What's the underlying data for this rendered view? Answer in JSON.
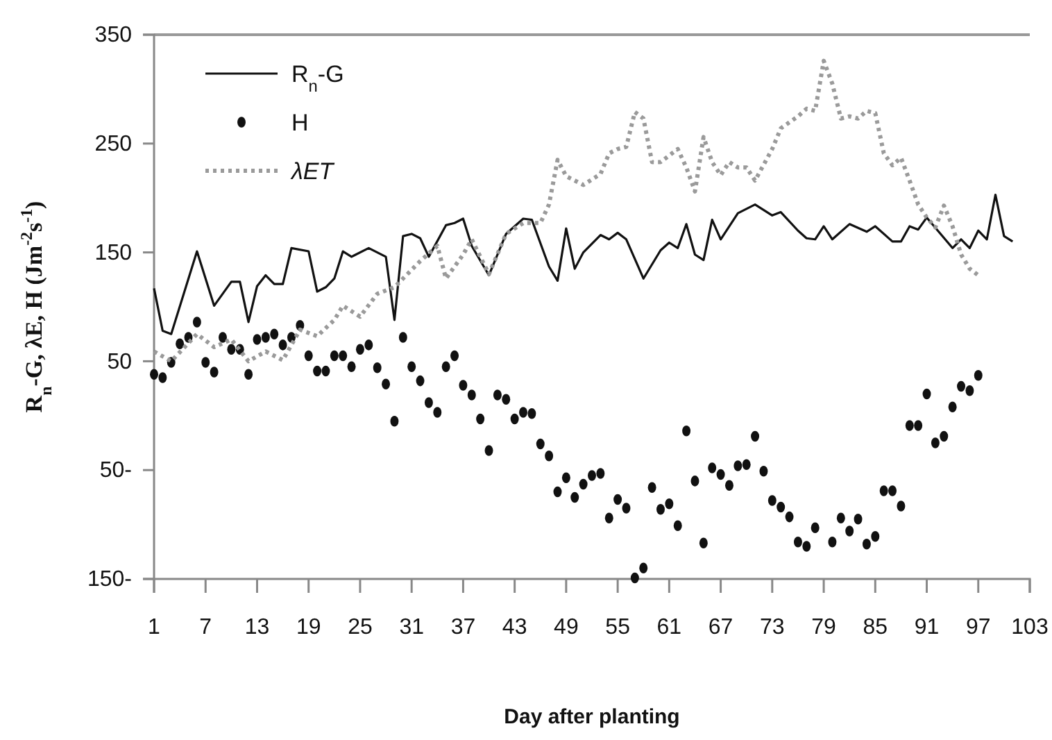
{
  "chart_data": {
    "type": "line",
    "xlabel": "Day after planting",
    "ylabel": "R$_{n}$-G, λE, H (Jm$^{-2}$s$^{-1}$)",
    "xlim": [
      1,
      103
    ],
    "xticks": [
      1,
      7,
      13,
      19,
      25,
      31,
      37,
      43,
      49,
      55,
      61,
      67,
      73,
      79,
      85,
      91,
      97,
      103
    ],
    "ylim": [
      -150,
      350
    ],
    "yticks": [
      350,
      250,
      150,
      50,
      {
        "value": -50,
        "label": "50-"
      },
      {
        "value": -150,
        "label": "150-"
      }
    ],
    "grid": false,
    "legend": "top left",
    "series": [
      {
        "name": "R$_{n}$-G",
        "type": "line",
        "color": "#111111",
        "line_style": "solid",
        "marker": "none",
        "x": [
          1,
          2,
          3,
          6,
          8,
          10,
          11,
          12,
          13,
          14,
          15,
          16,
          17,
          19,
          20,
          21,
          22,
          23,
          24,
          26,
          28,
          29,
          30,
          31,
          32,
          33,
          35,
          36,
          37,
          38,
          40,
          42,
          44,
          45,
          47,
          48,
          49,
          50,
          51,
          53,
          54,
          55,
          56,
          58,
          60,
          61,
          62,
          63,
          64,
          65,
          66,
          67,
          69,
          71,
          73,
          74,
          76,
          77,
          78,
          79,
          80,
          82,
          84,
          85,
          87,
          88,
          89,
          90,
          91,
          94,
          95,
          96,
          97,
          98,
          99,
          100,
          101
        ],
        "values": [
          117,
          78,
          75,
          151,
          101,
          123,
          123,
          86,
          119,
          129,
          121,
          121,
          154,
          151,
          114,
          118,
          126,
          151,
          146,
          154,
          146,
          88,
          165,
          167,
          163,
          146,
          175,
          177,
          181,
          156,
          129,
          167,
          181,
          180,
          137,
          124,
          172,
          135,
          150,
          166,
          162,
          168,
          162,
          126,
          152,
          159,
          154,
          176,
          148,
          143,
          180,
          162,
          186,
          194,
          184,
          187,
          170,
          163,
          162,
          174,
          162,
          176,
          169,
          174,
          160,
          160,
          174,
          171,
          182,
          154,
          162,
          154,
          170,
          162,
          203,
          165,
          160
        ]
      },
      {
        "name": "H",
        "type": "scatter",
        "color": "#111111",
        "marker": "circle",
        "x": [
          1,
          2,
          3,
          4,
          5,
          6,
          7,
          8,
          9,
          10,
          11,
          12,
          13,
          14,
          15,
          16,
          17,
          18,
          19,
          20,
          21,
          22,
          23,
          24,
          25,
          26,
          27,
          28,
          29,
          30,
          31,
          32,
          33,
          34,
          35,
          36,
          37,
          38,
          39,
          40,
          41,
          42,
          43,
          44,
          45,
          46,
          47,
          48,
          49,
          50,
          51,
          52,
          53,
          54,
          55,
          56,
          57,
          58,
          59,
          60,
          61,
          62,
          63,
          64,
          65,
          66,
          67,
          68,
          69,
          70,
          71,
          72,
          73,
          74,
          75,
          76,
          77,
          78,
          80,
          81,
          82,
          83,
          84,
          85,
          86,
          87,
          88,
          89,
          90,
          91,
          92,
          93,
          94,
          95,
          96,
          97
        ],
        "values": [
          38,
          35,
          49,
          66,
          72,
          86,
          49,
          40,
          72,
          61,
          61,
          38,
          70,
          72,
          75,
          65,
          72,
          83,
          55,
          41,
          41,
          55,
          55,
          45,
          61,
          65,
          44,
          29,
          -5,
          72,
          45,
          32,
          12,
          3,
          45,
          55,
          28,
          19,
          -3,
          -32,
          19,
          15,
          -3,
          3,
          2,
          -26,
          -37,
          -70,
          -57,
          -75,
          -63,
          -55,
          -53,
          -94,
          -77,
          -85,
          -149,
          -140,
          -66,
          -86,
          -81,
          -101,
          -14,
          -60,
          -117,
          -48,
          -54,
          -64,
          -46,
          -45,
          -19,
          -51,
          -78,
          -84,
          -93,
          -116,
          -120,
          -103,
          -116,
          -94,
          -106,
          -95,
          -118,
          -111,
          -69,
          -69,
          -83,
          -9,
          -9,
          20,
          -25,
          -19,
          8,
          27,
          23,
          37
        ]
      },
      {
        "name": "λET",
        "type": "line",
        "color": "#9a9a9a",
        "line_style": "dotted",
        "marker": "none",
        "x": [
          1,
          3,
          6,
          8,
          10,
          12,
          14,
          16,
          18,
          20,
          22,
          23,
          25,
          27,
          29,
          30,
          32,
          34,
          35,
          37,
          38,
          40,
          42,
          44,
          46,
          47,
          48,
          49,
          51,
          53,
          54,
          55,
          56,
          57,
          58,
          59,
          60,
          62,
          63,
          64,
          65,
          66,
          67,
          68,
          69,
          70,
          71,
          73,
          74,
          76,
          77,
          78,
          79,
          80,
          81,
          82,
          83,
          84,
          85,
          86,
          87,
          88,
          89,
          90,
          91,
          92,
          93,
          94,
          95,
          96,
          97
        ],
        "values": [
          59,
          50,
          75,
          63,
          70,
          50,
          59,
          51,
          79,
          73,
          88,
          101,
          91,
          112,
          118,
          126,
          142,
          156,
          126,
          148,
          162,
          130,
          167,
          177,
          177,
          194,
          235,
          220,
          212,
          222,
          241,
          245,
          247,
          279,
          273,
          233,
          233,
          245,
          228,
          206,
          256,
          233,
          221,
          233,
          228,
          228,
          216,
          245,
          264,
          275,
          282,
          280,
          326,
          305,
          273,
          275,
          273,
          280,
          278,
          241,
          230,
          237,
          216,
          194,
          182,
          173,
          193,
          174,
          148,
          135,
          129
        ]
      }
    ]
  }
}
